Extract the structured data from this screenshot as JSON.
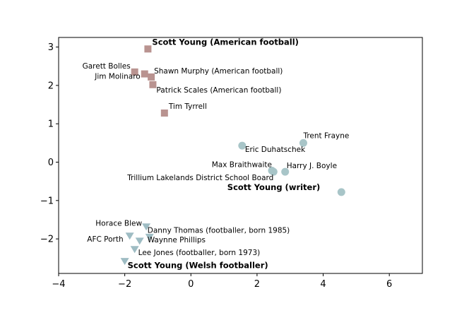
{
  "chart_data": {
    "type": "scatter",
    "xlim": [
      -4,
      7
    ],
    "ylim": [
      -2.9,
      3.25
    ],
    "x_ticks": [
      -4,
      -2,
      0,
      2,
      4,
      6
    ],
    "y_ticks": [
      -2,
      -1,
      0,
      1,
      2,
      3
    ],
    "grid": false,
    "colors": {
      "american_football": "#b99390",
      "writer": "#a8c5c8",
      "welsh_footballer": "#9ebcc3"
    },
    "series": [
      {
        "marker": "square",
        "color": "#b99390",
        "points": [
          {
            "label": "Scott Young (American football)",
            "x": -1.3,
            "y": 2.95,
            "bold": true,
            "anchor": "start",
            "dx": 6,
            "dy": -6
          },
          {
            "label": "Garett Bolles",
            "x": -1.7,
            "y": 2.35,
            "bold": false,
            "anchor": "end",
            "dx": -6,
            "dy": -5
          },
          {
            "label": "Jim Molinaro",
            "x": -1.4,
            "y": 2.3,
            "bold": false,
            "anchor": "end",
            "dx": -6,
            "dy": 7
          },
          {
            "label": "Shawn Murphy (American football)",
            "x": -1.2,
            "y": 2.22,
            "bold": false,
            "anchor": "start",
            "dx": 4,
            "dy": -5
          },
          {
            "label": "Patrick Scales (American football)",
            "x": -1.15,
            "y": 2.02,
            "bold": false,
            "anchor": "start",
            "dx": 5,
            "dy": 11
          },
          {
            "label": "Tim Tyrrell",
            "x": -0.8,
            "y": 1.28,
            "bold": false,
            "anchor": "start",
            "dx": 6,
            "dy": -6
          }
        ]
      },
      {
        "marker": "circle",
        "color": "#a8c5c8",
        "points": [
          {
            "label": "Trent Frayne",
            "x": 3.4,
            "y": 0.5,
            "bold": false,
            "anchor": "start",
            "dx": 0,
            "dy": -7
          },
          {
            "label": "Eric Duhatschek",
            "x": 1.55,
            "y": 0.43,
            "bold": false,
            "anchor": "start",
            "dx": 4,
            "dy": 9
          },
          {
            "label": "Max Braithwaite",
            "x": 2.45,
            "y": -0.22,
            "bold": false,
            "anchor": "end",
            "dx": 0,
            "dy": -5
          },
          {
            "label": "Harry J. Boyle",
            "x": 2.85,
            "y": -0.25,
            "bold": false,
            "anchor": "start",
            "dx": 2,
            "dy": -5
          },
          {
            "label": "Trillium Lakelands District School Board",
            "x": 2.5,
            "y": -0.25,
            "bold": false,
            "anchor": "end",
            "dx": 0,
            "dy": 12
          },
          {
            "label": "Scott Young (writer)",
            "x": 4.55,
            "y": -0.78,
            "bold": true,
            "anchor": "end",
            "dx": -30,
            "dy": -3
          }
        ]
      },
      {
        "marker": "triangle-down",
        "color": "#9ebcc3",
        "points": [
          {
            "label": "Horace Blew",
            "x": -1.35,
            "y": -1.68,
            "bold": false,
            "anchor": "end",
            "dx": -6,
            "dy": -1
          },
          {
            "label": "Danny Thomas (footballer, born 1985)",
            "x": -1.25,
            "y": -1.95,
            "bold": false,
            "anchor": "start",
            "dx": -3,
            "dy": -6
          },
          {
            "label": "AFC Porth",
            "x": -1.85,
            "y": -1.92,
            "bold": false,
            "anchor": "end",
            "dx": -9,
            "dy": 8
          },
          {
            "label": "Waynne Phillips",
            "x": -1.55,
            "y": -2.05,
            "bold": false,
            "anchor": "start",
            "dx": 11,
            "dy": 2
          },
          {
            "label": "Lee Jones (footballer, born 1973)",
            "x": -1.7,
            "y": -2.27,
            "bold": false,
            "anchor": "start",
            "dx": 5,
            "dy": 8
          },
          {
            "label": "Scott Young (Welsh footballer)",
            "x": -2.0,
            "y": -2.58,
            "bold": true,
            "anchor": "start",
            "dx": 4,
            "dy": 10
          }
        ]
      }
    ]
  }
}
